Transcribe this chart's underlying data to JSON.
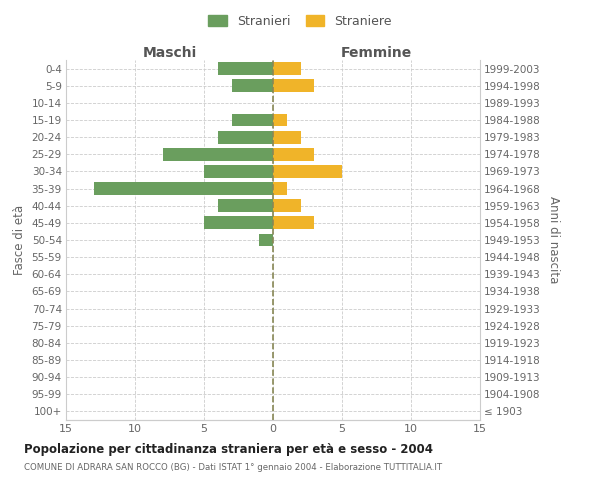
{
  "age_groups": [
    "100+",
    "95-99",
    "90-94",
    "85-89",
    "80-84",
    "75-79",
    "70-74",
    "65-69",
    "60-64",
    "55-59",
    "50-54",
    "45-49",
    "40-44",
    "35-39",
    "30-34",
    "25-29",
    "20-24",
    "15-19",
    "10-14",
    "5-9",
    "0-4"
  ],
  "birth_years": [
    "≤ 1903",
    "1904-1908",
    "1909-1913",
    "1914-1918",
    "1919-1923",
    "1924-1928",
    "1929-1933",
    "1934-1938",
    "1939-1943",
    "1944-1948",
    "1949-1953",
    "1954-1958",
    "1959-1963",
    "1964-1968",
    "1969-1973",
    "1974-1978",
    "1979-1983",
    "1984-1988",
    "1989-1993",
    "1994-1998",
    "1999-2003"
  ],
  "maschi": [
    0,
    0,
    0,
    0,
    0,
    0,
    0,
    0,
    0,
    0,
    1,
    5,
    4,
    13,
    5,
    8,
    4,
    3,
    0,
    3,
    4
  ],
  "femmine": [
    0,
    0,
    0,
    0,
    0,
    0,
    0,
    0,
    0,
    0,
    0,
    3,
    2,
    1,
    5,
    3,
    2,
    1,
    0,
    3,
    2
  ],
  "maschi_color": "#6a9e5e",
  "femmine_color": "#f0b429",
  "bg_color": "#ffffff",
  "grid_color": "#cccccc",
  "title": "Popolazione per cittadinanza straniera per età e sesso - 2004",
  "subtitle": "COMUNE DI ADRARA SAN ROCCO (BG) - Dati ISTAT 1° gennaio 2004 - Elaborazione TUTTITALIA.IT",
  "xlabel_left": "Maschi",
  "xlabel_right": "Femmine",
  "ylabel_left": "Fasce di età",
  "ylabel_right": "Anni di nascita",
  "legend_stranieri": "Stranieri",
  "legend_straniere": "Straniere",
  "xlim": 15
}
